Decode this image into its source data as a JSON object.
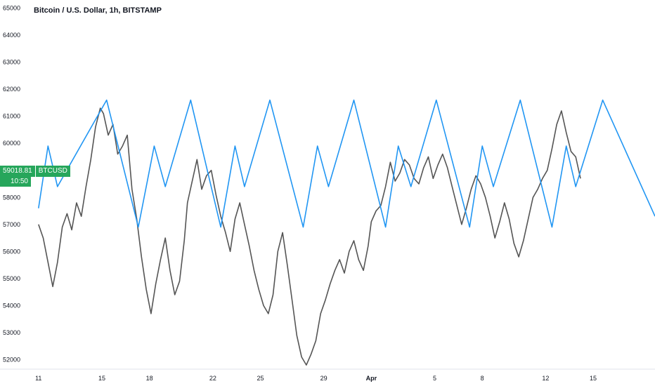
{
  "header": {
    "title": "Bitcoin / U.S. Dollar, 1h, BITSTAMP"
  },
  "price_tag": {
    "price": "59018.81",
    "symbol": "BTCUSD",
    "time": "10:50",
    "color": "#26a65b"
  },
  "chart_data": {
    "type": "line",
    "title": "Bitcoin / U.S. Dollar, 1h, BITSTAMP",
    "ylim": [
      51700,
      65300
    ],
    "y_ticks": [
      52000,
      53000,
      54000,
      55000,
      56000,
      57000,
      58000,
      59000,
      60000,
      61000,
      62000,
      63000,
      64000,
      65000
    ],
    "x_ticks": [
      {
        "label": "11",
        "day": 0
      },
      {
        "label": "15",
        "day": 4
      },
      {
        "label": "18",
        "day": 7
      },
      {
        "label": "22",
        "day": 11
      },
      {
        "label": "25",
        "day": 14
      },
      {
        "label": "29",
        "day": 18
      },
      {
        "label": "Apr",
        "day": 21,
        "bold": true
      },
      {
        "label": "5",
        "day": 25
      },
      {
        "label": "8",
        "day": 28
      },
      {
        "label": "12",
        "day": 32
      },
      {
        "label": "15",
        "day": 35
      }
    ],
    "xlim_days": [
      -0.3,
      38.9
    ],
    "grid": false,
    "colors": {
      "price": "#555555",
      "indicator": "#2196f3"
    },
    "series": [
      {
        "kind": "price",
        "points": [
          [
            0.0,
            57000
          ],
          [
            0.3,
            56500
          ],
          [
            0.6,
            55600
          ],
          [
            0.9,
            54700
          ],
          [
            1.2,
            55600
          ],
          [
            1.5,
            56900
          ],
          [
            1.8,
            57400
          ],
          [
            2.1,
            56800
          ],
          [
            2.4,
            57800
          ],
          [
            2.7,
            57300
          ],
          [
            3.0,
            58400
          ],
          [
            3.3,
            59400
          ],
          [
            3.6,
            60600
          ],
          [
            3.9,
            61300
          ],
          [
            4.1,
            61100
          ],
          [
            4.4,
            60300
          ],
          [
            4.7,
            60700
          ],
          [
            5.0,
            59600
          ],
          [
            5.3,
            59900
          ],
          [
            5.6,
            60300
          ],
          [
            5.9,
            58300
          ],
          [
            6.2,
            57200
          ],
          [
            6.5,
            55800
          ],
          [
            6.8,
            54600
          ],
          [
            7.1,
            53700
          ],
          [
            7.4,
            54800
          ],
          [
            7.7,
            55700
          ],
          [
            8.0,
            56500
          ],
          [
            8.3,
            55300
          ],
          [
            8.6,
            54400
          ],
          [
            8.9,
            54900
          ],
          [
            9.2,
            56400
          ],
          [
            9.4,
            57800
          ],
          [
            9.7,
            58600
          ],
          [
            10.0,
            59400
          ],
          [
            10.3,
            58300
          ],
          [
            10.6,
            58800
          ],
          [
            10.9,
            59000
          ],
          [
            11.2,
            58100
          ],
          [
            11.5,
            57300
          ],
          [
            11.8,
            56700
          ],
          [
            12.1,
            56000
          ],
          [
            12.4,
            57200
          ],
          [
            12.7,
            57800
          ],
          [
            13.0,
            57000
          ],
          [
            13.3,
            56200
          ],
          [
            13.6,
            55300
          ],
          [
            13.9,
            54600
          ],
          [
            14.2,
            54000
          ],
          [
            14.5,
            53700
          ],
          [
            14.8,
            54400
          ],
          [
            15.1,
            56000
          ],
          [
            15.4,
            56700
          ],
          [
            15.7,
            55500
          ],
          [
            16.0,
            54200
          ],
          [
            16.3,
            52900
          ],
          [
            16.6,
            52100
          ],
          [
            16.9,
            51800
          ],
          [
            17.2,
            52200
          ],
          [
            17.5,
            52700
          ],
          [
            17.8,
            53700
          ],
          [
            18.1,
            54200
          ],
          [
            18.4,
            54800
          ],
          [
            18.7,
            55300
          ],
          [
            19.0,
            55700
          ],
          [
            19.3,
            55200
          ],
          [
            19.6,
            56000
          ],
          [
            19.9,
            56400
          ],
          [
            20.2,
            55700
          ],
          [
            20.5,
            55300
          ],
          [
            20.8,
            56200
          ],
          [
            21.0,
            57100
          ],
          [
            21.3,
            57500
          ],
          [
            21.6,
            57700
          ],
          [
            21.9,
            58400
          ],
          [
            22.2,
            59300
          ],
          [
            22.5,
            58600
          ],
          [
            22.8,
            58900
          ],
          [
            23.1,
            59400
          ],
          [
            23.4,
            59200
          ],
          [
            23.7,
            58700
          ],
          [
            24.0,
            58500
          ],
          [
            24.3,
            59100
          ],
          [
            24.6,
            59500
          ],
          [
            24.9,
            58700
          ],
          [
            25.2,
            59200
          ],
          [
            25.5,
            59600
          ],
          [
            25.8,
            59100
          ],
          [
            26.1,
            58400
          ],
          [
            26.4,
            57700
          ],
          [
            26.7,
            57000
          ],
          [
            27.0,
            57600
          ],
          [
            27.3,
            58300
          ],
          [
            27.6,
            58800
          ],
          [
            27.9,
            58500
          ],
          [
            28.2,
            58000
          ],
          [
            28.5,
            57300
          ],
          [
            28.8,
            56500
          ],
          [
            29.1,
            57100
          ],
          [
            29.4,
            57800
          ],
          [
            29.7,
            57200
          ],
          [
            30.0,
            56300
          ],
          [
            30.3,
            55800
          ],
          [
            30.6,
            56400
          ],
          [
            30.9,
            57200
          ],
          [
            31.2,
            58000
          ],
          [
            31.5,
            58300
          ],
          [
            31.8,
            58700
          ],
          [
            32.1,
            59000
          ],
          [
            32.4,
            59800
          ],
          [
            32.7,
            60700
          ],
          [
            33.0,
            61200
          ],
          [
            33.3,
            60400
          ],
          [
            33.6,
            59700
          ],
          [
            33.9,
            59500
          ],
          [
            34.2,
            58700
          ]
        ]
      },
      {
        "kind": "indicator",
        "points": [
          [
            0.0,
            57600
          ],
          [
            0.6,
            59900
          ],
          [
            1.2,
            58400
          ],
          [
            4.3,
            61600
          ],
          [
            6.3,
            56900
          ],
          [
            7.3,
            59900
          ],
          [
            8.0,
            58400
          ],
          [
            9.6,
            61600
          ],
          [
            11.5,
            56900
          ],
          [
            12.4,
            59900
          ],
          [
            13.0,
            58400
          ],
          [
            14.6,
            61600
          ],
          [
            16.7,
            56900
          ],
          [
            17.6,
            59900
          ],
          [
            18.3,
            58400
          ],
          [
            19.9,
            61600
          ],
          [
            21.9,
            56900
          ],
          [
            22.7,
            59900
          ],
          [
            23.5,
            58400
          ],
          [
            25.1,
            61600
          ],
          [
            27.2,
            56900
          ],
          [
            28.0,
            59900
          ],
          [
            28.7,
            58400
          ],
          [
            30.4,
            61600
          ],
          [
            32.4,
            56900
          ],
          [
            33.3,
            59900
          ],
          [
            33.9,
            58400
          ],
          [
            35.6,
            61600
          ],
          [
            38.9,
            57300
          ]
        ]
      }
    ]
  }
}
